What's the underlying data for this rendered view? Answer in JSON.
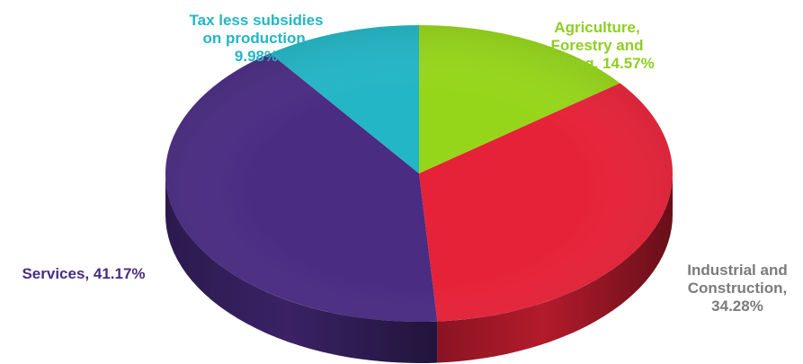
{
  "chart_data": {
    "type": "pie",
    "style": "3d",
    "slices": [
      {
        "label": "Agriculture, Forestry and Fishing",
        "value": 14.57,
        "display": [
          "Agriculture,",
          "Forestry and",
          "Fishing, 14.57%"
        ],
        "color": "#96d61a",
        "label_color": "#8fce25"
      },
      {
        "label": "Industrial and Construction",
        "value": 34.28,
        "display": [
          "Industrial and",
          "Construction,",
          "34.28%"
        ],
        "color": "#e62238",
        "label_color": "#7b7b7b"
      },
      {
        "label": "Services",
        "value": 41.17,
        "display": [
          "Services, 41.17%"
        ],
        "color": "#4a2c82",
        "label_color": "#4a2c82"
      },
      {
        "label": "Tax less subsidies on production",
        "value": 9.98,
        "display": [
          "Tax less subsidies",
          "on production,",
          "9.98%"
        ],
        "color": "#23b6c6",
        "label_color": "#23b6c6"
      }
    ]
  }
}
